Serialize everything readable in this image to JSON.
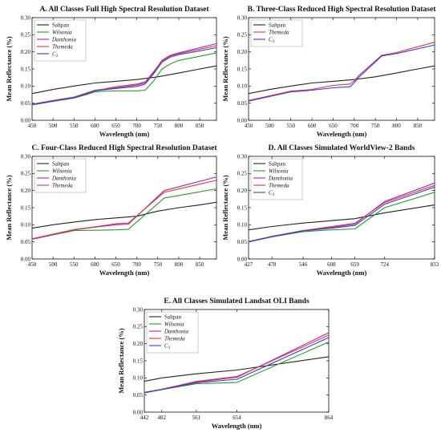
{
  "colors": {
    "Saltpan": "#222222",
    "Wilsonia": "#2a9a2a",
    "Danthonia": "#a52aa5",
    "Themeda": "#e8323c",
    "C3": "#2f3ee0"
  },
  "chart_data": [
    {
      "type": "line",
      "title": "A.  All Classes Full High Spectral Resolution Dataset",
      "xlabel": "Wavelength (nm)",
      "ylabel": "Mean Reflectance (%)",
      "xlim": [
        450,
        890
      ],
      "ylim": [
        0,
        0.3
      ],
      "xticks": [
        450,
        500,
        550,
        600,
        650,
        700,
        750,
        800,
        850
      ],
      "yticks": [
        0.0,
        0.05,
        0.1,
        0.15,
        0.2,
        0.25,
        0.3
      ],
      "legend": "top-left",
      "series": [
        {
          "name": "Saltpan",
          "x": [
            450,
            500,
            550,
            600,
            650,
            700,
            750,
            800,
            850,
            890
          ],
          "y": [
            0.078,
            0.09,
            0.1,
            0.109,
            0.114,
            0.119,
            0.127,
            0.138,
            0.15,
            0.159
          ]
        },
        {
          "name": "Wilsonia",
          "x": [
            450,
            500,
            550,
            580,
            600,
            620,
            650,
            700,
            720,
            740,
            760,
            780,
            800,
            850,
            890
          ],
          "y": [
            0.045,
            0.055,
            0.065,
            0.075,
            0.083,
            0.085,
            0.086,
            0.086,
            0.088,
            0.115,
            0.15,
            0.165,
            0.175,
            0.187,
            0.197
          ]
        },
        {
          "name": "Danthonia",
          "x": [
            450,
            500,
            550,
            580,
            600,
            620,
            650,
            700,
            720,
            740,
            760,
            780,
            800,
            850,
            890
          ],
          "y": [
            0.046,
            0.057,
            0.067,
            0.078,
            0.087,
            0.09,
            0.095,
            0.103,
            0.11,
            0.14,
            0.175,
            0.19,
            0.197,
            0.212,
            0.224
          ]
        },
        {
          "name": "Themeda",
          "x": [
            450,
            500,
            550,
            580,
            600,
            620,
            650,
            700,
            720,
            740,
            760,
            780,
            800,
            850,
            890
          ],
          "y": [
            0.047,
            0.058,
            0.068,
            0.08,
            0.088,
            0.091,
            0.098,
            0.106,
            0.112,
            0.142,
            0.173,
            0.188,
            0.195,
            0.208,
            0.218
          ]
        },
        {
          "name": "C3",
          "x": [
            450,
            500,
            550,
            580,
            600,
            620,
            650,
            700,
            720,
            740,
            760,
            780,
            800,
            850,
            890
          ],
          "y": [
            0.046,
            0.056,
            0.066,
            0.077,
            0.086,
            0.089,
            0.093,
            0.099,
            0.106,
            0.136,
            0.17,
            0.185,
            0.192,
            0.203,
            0.212
          ]
        }
      ]
    },
    {
      "type": "line",
      "title": "B.  Three-Class Reduced High Spectral Resolution Dataset",
      "xlabel": "Wavelength (nm)",
      "ylabel": "Mean Reflectance (%)",
      "xlim": [
        450,
        890
      ],
      "ylim": [
        0,
        0.3
      ],
      "xticks": [
        450,
        500,
        550,
        600,
        650,
        700,
        750,
        800,
        850
      ],
      "yticks": [
        0.0,
        0.05,
        0.1,
        0.15,
        0.2,
        0.25,
        0.3
      ],
      "legend": "top-left",
      "series": [
        {
          "name": "Saltpan",
          "x": [
            450,
            500,
            550,
            600,
            650,
            700,
            750,
            800,
            850,
            890
          ],
          "y": [
            0.078,
            0.09,
            0.1,
            0.109,
            0.114,
            0.119,
            0.127,
            0.138,
            0.15,
            0.159
          ]
        },
        {
          "name": "Themeda",
          "x": [
            450,
            550,
            600,
            650,
            690,
            700,
            710,
            765,
            800,
            890
          ],
          "y": [
            0.058,
            0.085,
            0.09,
            0.102,
            0.106,
            0.115,
            0.13,
            0.19,
            0.198,
            0.228
          ]
        },
        {
          "name": "C3",
          "x": [
            450,
            550,
            600,
            650,
            690,
            700,
            710,
            765,
            800,
            890
          ],
          "y": [
            0.056,
            0.083,
            0.088,
            0.095,
            0.098,
            0.11,
            0.125,
            0.188,
            0.195,
            0.22
          ]
        }
      ]
    },
    {
      "type": "line",
      "title": "C.  Four-Class Reduced High Spectral Resolution Dataset",
      "xlabel": "Wavelength (nm)",
      "ylabel": "Mean Reflectance (%)",
      "xlim": [
        450,
        890
      ],
      "ylim": [
        0,
        0.3
      ],
      "xticks": [
        450,
        500,
        550,
        600,
        650,
        700,
        750,
        800,
        850
      ],
      "yticks": [
        0.0,
        0.05,
        0.1,
        0.15,
        0.2,
        0.25,
        0.3
      ],
      "legend": "top-left",
      "series": [
        {
          "name": "Saltpan",
          "x": [
            450,
            500,
            550,
            600,
            650,
            700,
            750,
            800,
            850,
            890
          ],
          "y": [
            0.09,
            0.1,
            0.108,
            0.115,
            0.12,
            0.125,
            0.14,
            0.15,
            0.158,
            0.166
          ]
        },
        {
          "name": "Wilsonia",
          "x": [
            450,
            550,
            600,
            650,
            680,
            765,
            890
          ],
          "y": [
            0.058,
            0.083,
            0.084,
            0.085,
            0.087,
            0.178,
            0.205
          ]
        },
        {
          "name": "Danthonia",
          "x": [
            450,
            550,
            600,
            650,
            680,
            765,
            890
          ],
          "y": [
            0.058,
            0.085,
            0.093,
            0.1,
            0.102,
            0.2,
            0.24
          ]
        },
        {
          "name": "Themeda",
          "x": [
            450,
            550,
            600,
            650,
            680,
            765,
            890
          ],
          "y": [
            0.059,
            0.086,
            0.094,
            0.103,
            0.105,
            0.195,
            0.23
          ]
        }
      ]
    },
    {
      "type": "line",
      "title": "D.  All Classes Simulated WorldView-2 Bands",
      "xlabel": "Wavelength (nm)",
      "ylabel": "Mean Reflectance (%)",
      "xlim": [
        427,
        833
      ],
      "ylim": [
        0,
        0.3
      ],
      "xticks": [
        427,
        478,
        546,
        608,
        659,
        724,
        833
      ],
      "yticks": [
        0.0,
        0.05,
        0.1,
        0.15,
        0.2,
        0.25,
        0.3
      ],
      "legend": "top-left",
      "series": [
        {
          "name": "Saltpan",
          "x": [
            427,
            478,
            546,
            608,
            659,
            724,
            833
          ],
          "y": [
            0.085,
            0.095,
            0.105,
            0.112,
            0.118,
            0.135,
            0.158
          ]
        },
        {
          "name": "Wilsonia",
          "x": [
            427,
            478,
            546,
            608,
            659,
            724,
            833
          ],
          "y": [
            0.05,
            0.065,
            0.08,
            0.085,
            0.088,
            0.15,
            0.195
          ]
        },
        {
          "name": "Danthonia",
          "x": [
            427,
            478,
            546,
            608,
            659,
            724,
            833
          ],
          "y": [
            0.05,
            0.066,
            0.083,
            0.092,
            0.102,
            0.168,
            0.222
          ]
        },
        {
          "name": "Themeda",
          "x": [
            427,
            478,
            546,
            608,
            659,
            724,
            833
          ],
          "y": [
            0.051,
            0.066,
            0.083,
            0.095,
            0.104,
            0.165,
            0.215
          ]
        },
        {
          "name": "C3",
          "x": [
            427,
            478,
            546,
            608,
            659,
            724,
            833
          ],
          "y": [
            0.05,
            0.065,
            0.082,
            0.09,
            0.098,
            0.16,
            0.21
          ]
        }
      ]
    },
    {
      "type": "line",
      "title": "E.  All Classes Simulated Landsat OLI Bands",
      "xlabel": "Wavelength (nm)",
      "ylabel": "Mean Reflectance (%)",
      "xlim": [
        442,
        864
      ],
      "ylim": [
        0,
        0.3
      ],
      "xticks": [
        442,
        482,
        561,
        654,
        864
      ],
      "yticks": [
        0.0,
        0.05,
        0.1,
        0.15,
        0.2,
        0.25,
        0.3
      ],
      "legend": "top-left",
      "series": [
        {
          "name": "Saltpan",
          "x": [
            442,
            482,
            561,
            654,
            864
          ],
          "y": [
            0.09,
            0.1,
            0.112,
            0.123,
            0.162
          ]
        },
        {
          "name": "Wilsonia",
          "x": [
            442,
            482,
            561,
            654,
            864
          ],
          "y": [
            0.056,
            0.066,
            0.083,
            0.087,
            0.205
          ]
        },
        {
          "name": "Danthonia",
          "x": [
            442,
            482,
            561,
            654,
            864
          ],
          "y": [
            0.057,
            0.066,
            0.088,
            0.102,
            0.232
          ]
        },
        {
          "name": "Themeda",
          "x": [
            442,
            482,
            561,
            654,
            864
          ],
          "y": [
            0.058,
            0.067,
            0.09,
            0.104,
            0.225
          ]
        },
        {
          "name": "C3",
          "x": [
            442,
            482,
            561,
            654,
            864
          ],
          "y": [
            0.057,
            0.066,
            0.086,
            0.096,
            0.218
          ]
        }
      ]
    }
  ]
}
